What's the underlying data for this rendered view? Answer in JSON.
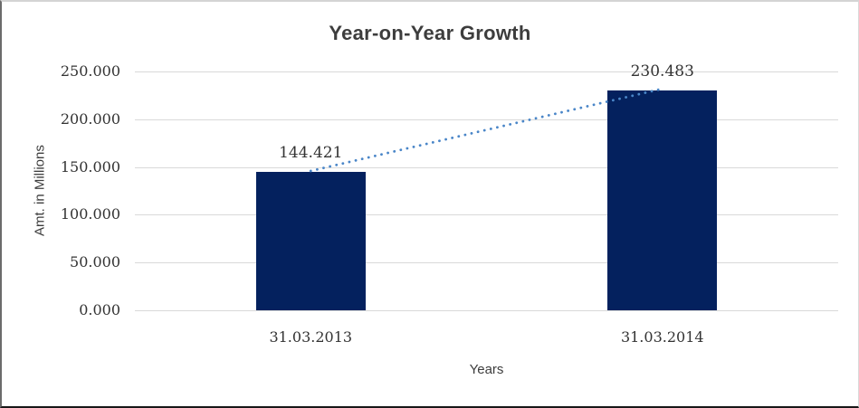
{
  "chart_data": {
    "type": "bar",
    "title": "Year-on-Year Growth",
    "categories": [
      "31.03.2013",
      "31.03.2014"
    ],
    "values": [
      144.421,
      230.483
    ],
    "data_labels": [
      "144.421",
      "230.483"
    ],
    "xlabel": "Years",
    "ylabel": "Amt. in Millions",
    "ylim": [
      0,
      250
    ],
    "ytick_values": [
      0,
      50,
      100,
      150,
      200,
      250
    ],
    "ytick_labels": [
      "0.000",
      "50.000",
      "100.000",
      "150.000",
      "200.000",
      "250.000"
    ],
    "grid": "horizontal",
    "legend": "none",
    "trendline": {
      "style": "dotted",
      "color": "#4A86C8",
      "connects": "bar-tops"
    },
    "colors": {
      "bar": "#04215E",
      "gridline": "#D9D9D9",
      "text": "#3D3D3D"
    }
  }
}
